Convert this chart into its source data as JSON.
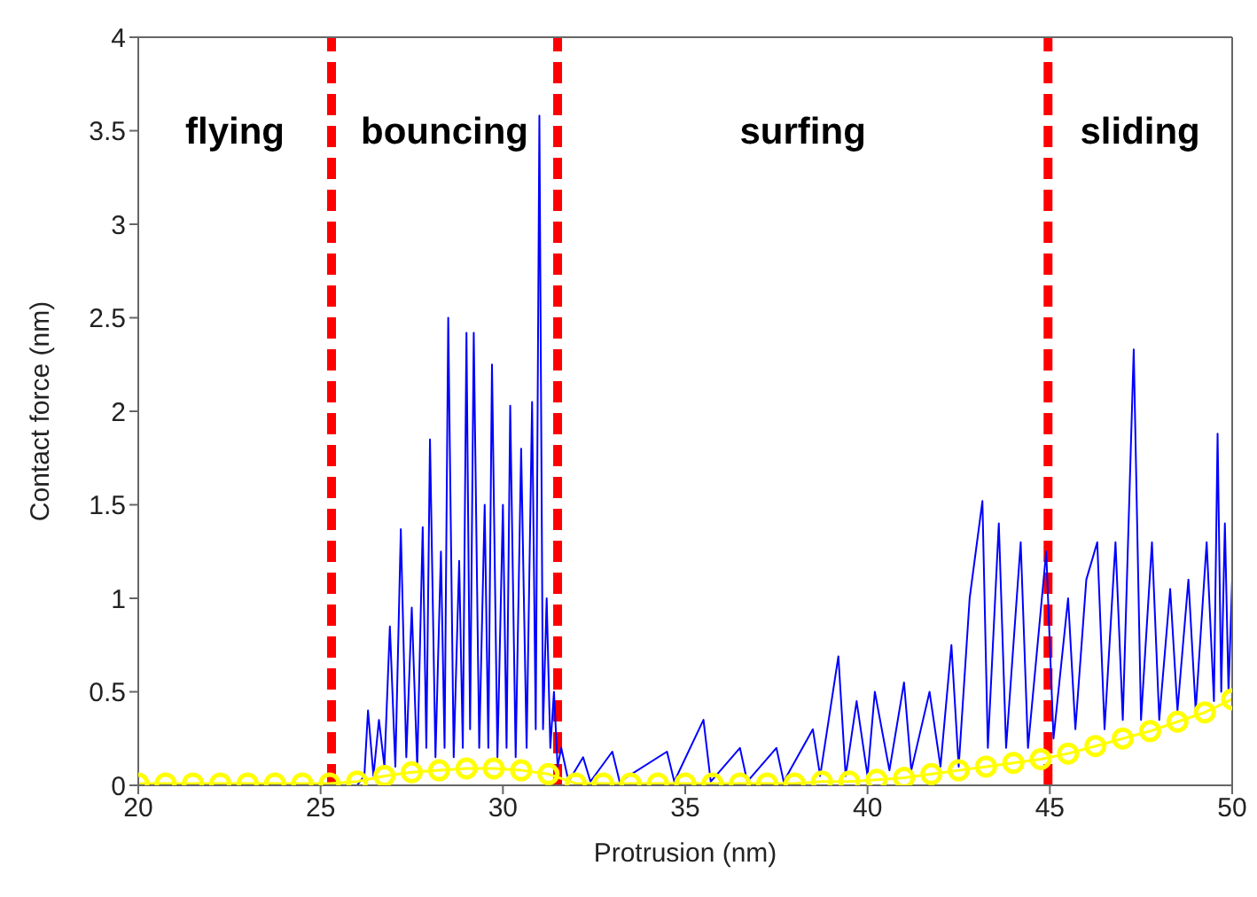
{
  "chart_data": {
    "type": "line",
    "xlabel": "Protrusion (nm)",
    "ylabel": "Contact force (nm)",
    "xlim": [
      20,
      50
    ],
    "xticks": [
      20,
      25,
      30,
      35,
      40,
      45,
      50
    ],
    "ylim": [
      0,
      4
    ],
    "yticks": [
      0,
      0.5,
      1,
      1.5,
      2,
      2.5,
      3,
      3.5,
      4
    ],
    "series": [
      {
        "color": "#0000ff",
        "marker": "none",
        "x": [
          20,
          25,
          26,
          26.2,
          26.3,
          26.45,
          26.6,
          26.75,
          26.9,
          27.05,
          27.2,
          27.35,
          27.5,
          27.65,
          27.8,
          27.9,
          28.0,
          28.15,
          28.3,
          28.4,
          28.5,
          28.65,
          28.8,
          28.9,
          29.0,
          29.1,
          29.2,
          29.35,
          29.5,
          29.6,
          29.7,
          29.85,
          30.0,
          30.1,
          30.2,
          30.35,
          30.5,
          30.65,
          30.8,
          30.9,
          31.0,
          31.1,
          31.2,
          31.3,
          31.4,
          31.5,
          31.6,
          31.8,
          32.2,
          32.4,
          33.0,
          33.2,
          34.5,
          34.7,
          35.5,
          35.7,
          36.5,
          36.7,
          37.5,
          37.7,
          38.5,
          38.7,
          39.2,
          39.4,
          39.7,
          40.0,
          40.2,
          40.6,
          41.0,
          41.2,
          41.7,
          42.0,
          42.3,
          42.5,
          42.8,
          43.15,
          43.3,
          43.6,
          43.8,
          44.2,
          44.4,
          44.9,
          45.1,
          45.5,
          45.7,
          46.0,
          46.3,
          46.5,
          46.8,
          47.0,
          47.3,
          47.5,
          47.8,
          48.0,
          48.3,
          48.5,
          48.8,
          49.0,
          49.3,
          49.5,
          49.6,
          49.7,
          49.8,
          49.9,
          50
        ],
        "values": [
          0,
          0,
          0,
          0.05,
          0.4,
          0.05,
          0.35,
          0.1,
          0.85,
          0.1,
          1.37,
          0.15,
          0.95,
          0.1,
          1.38,
          0.2,
          1.85,
          0.15,
          1.25,
          0.2,
          2.5,
          0.15,
          1.2,
          0.2,
          2.42,
          0.3,
          2.42,
          0.2,
          1.5,
          0.2,
          2.25,
          0.15,
          1.5,
          0.2,
          2.03,
          0.15,
          1.8,
          0.2,
          2.05,
          0.3,
          3.58,
          0.3,
          1.0,
          0.2,
          0.5,
          0.1,
          0.2,
          0.02,
          0.15,
          0.02,
          0.18,
          0.02,
          0.18,
          0.02,
          0.35,
          0.02,
          0.2,
          0.02,
          0.2,
          0.02,
          0.3,
          0.05,
          0.69,
          0.05,
          0.45,
          0.05,
          0.5,
          0.08,
          0.55,
          0.08,
          0.5,
          0.1,
          0.75,
          0.1,
          1.0,
          1.52,
          0.2,
          1.4,
          0.2,
          1.3,
          0.2,
          1.25,
          0.25,
          1.0,
          0.3,
          1.1,
          1.3,
          0.3,
          1.3,
          0.35,
          2.33,
          0.35,
          1.3,
          0.35,
          1.05,
          0.4,
          1.1,
          0.4,
          1.3,
          0.45,
          1.88,
          0.5,
          1.4,
          0.5,
          1.1
        ]
      },
      {
        "color": "#ffff00",
        "marker": "circle",
        "x": [
          20,
          20.75,
          21.5,
          22.25,
          23,
          23.75,
          24.5,
          25.25,
          26,
          26.75,
          27.5,
          28.25,
          29,
          29.75,
          30.5,
          31.25,
          32,
          32.75,
          33.5,
          34.25,
          35,
          35.75,
          36.5,
          37.25,
          38,
          38.75,
          39.5,
          40.25,
          41,
          41.75,
          42.5,
          43.25,
          44,
          44.75,
          45.5,
          46.25,
          47,
          47.75,
          48.5,
          49.25,
          50
        ],
        "values": [
          0.01,
          0.01,
          0.01,
          0.01,
          0.01,
          0.01,
          0.01,
          0.01,
          0.02,
          0.05,
          0.07,
          0.08,
          0.09,
          0.09,
          0.08,
          0.06,
          0.01,
          0.01,
          0.01,
          0.01,
          0.01,
          0.01,
          0.01,
          0.01,
          0.01,
          0.02,
          0.02,
          0.03,
          0.04,
          0.06,
          0.08,
          0.1,
          0.12,
          0.14,
          0.17,
          0.21,
          0.25,
          0.29,
          0.34,
          0.39,
          0.46
        ]
      }
    ],
    "ref_lines": [
      {
        "axis": "x",
        "value": 25.3,
        "color": "#ff0000",
        "line_style": "dashed"
      },
      {
        "axis": "x",
        "value": 31.5,
        "color": "#ff0000",
        "line_style": "dashed"
      },
      {
        "axis": "x",
        "value": 44.95,
        "color": "#ff0000",
        "line_style": "dashed"
      }
    ],
    "annotations": [
      "flying",
      "bouncing",
      "surfing",
      "sliding"
    ]
  }
}
